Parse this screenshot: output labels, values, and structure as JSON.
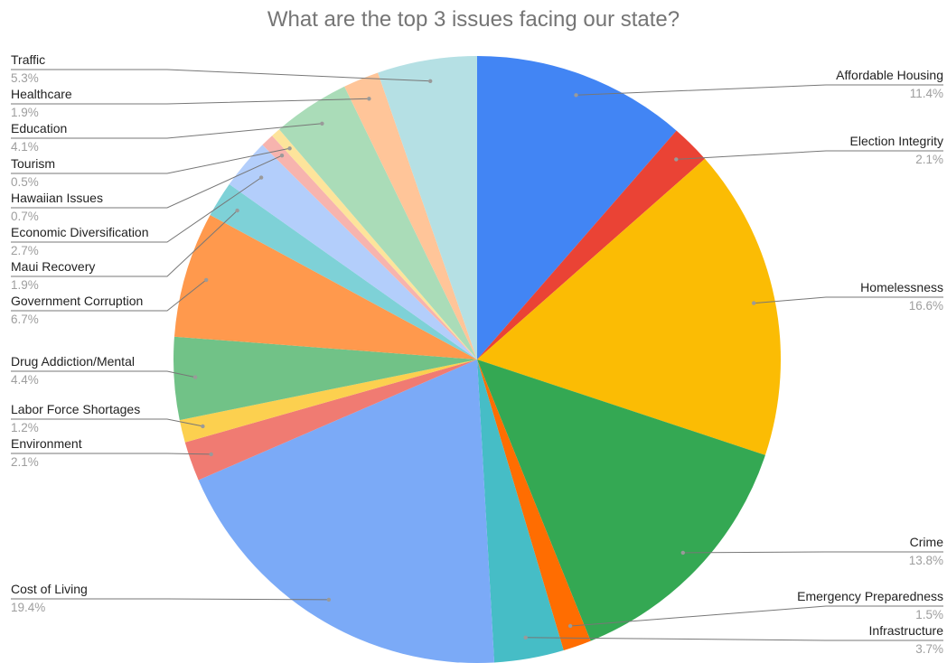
{
  "chart_data": {
    "type": "pie",
    "title": "What are the top 3 issues facing our state?",
    "start_angle_deg": 0,
    "direction": "clockwise",
    "slices": [
      {
        "label": "Affordable Housing",
        "value": 11.4,
        "display": "11.4%",
        "color": "#4285f4",
        "side": "right"
      },
      {
        "label": "Election Integrity",
        "value": 2.1,
        "display": "2.1%",
        "color": "#ea4335",
        "side": "right"
      },
      {
        "label": "Homelessness",
        "value": 16.6,
        "display": "16.6%",
        "color": "#fbbc04",
        "side": "right"
      },
      {
        "label": "Crime",
        "value": 13.8,
        "display": "13.8%",
        "color": "#34a853",
        "side": "right"
      },
      {
        "label": "Emergency Preparedness",
        "value": 1.5,
        "display": "1.5%",
        "color": "#ff6d01",
        "side": "right"
      },
      {
        "label": "Infrastructure",
        "value": 3.7,
        "display": "3.7%",
        "color": "#46bdc6",
        "side": "right"
      },
      {
        "label": "Cost of Living",
        "value": 19.4,
        "display": "19.4%",
        "color": "#7baaf7",
        "side": "left"
      },
      {
        "label": "Environment",
        "value": 2.1,
        "display": "2.1%",
        "color": "#f07b72",
        "side": "left"
      },
      {
        "label": "Labor Force Shortages",
        "value": 1.2,
        "display": "1.2%",
        "color": "#fcd04f",
        "side": "left"
      },
      {
        "label": "Drug Addiction/Mental",
        "value": 4.4,
        "display": "4.4%",
        "color": "#71c287",
        "side": "left"
      },
      {
        "label": "Government Corruption",
        "value": 6.7,
        "display": "6.7%",
        "color": "#ff994d",
        "side": "left"
      },
      {
        "label": "Maui Recovery",
        "value": 1.9,
        "display": "1.9%",
        "color": "#7ed1d7",
        "side": "left"
      },
      {
        "label": "Economic Diversification",
        "value": 2.7,
        "display": "2.7%",
        "color": "#b3cefb",
        "side": "left"
      },
      {
        "label": "Hawaiian Issues",
        "value": 0.7,
        "display": "0.7%",
        "color": "#f7b4ae",
        "side": "left"
      },
      {
        "label": "Tourism",
        "value": 0.5,
        "display": "0.5%",
        "color": "#fde49b",
        "side": "left"
      },
      {
        "label": "Education",
        "value": 4.1,
        "display": "4.1%",
        "color": "#aadcb8",
        "side": "left"
      },
      {
        "label": "Healthcare",
        "value": 1.9,
        "display": "1.9%",
        "color": "#ffc599",
        "side": "left"
      },
      {
        "label": "Traffic",
        "value": 5.3,
        "display": "5.3%",
        "color": "#b5e0e4",
        "side": "left"
      }
    ],
    "legend": "none",
    "label_style": "leader-lines with label and percentage"
  }
}
